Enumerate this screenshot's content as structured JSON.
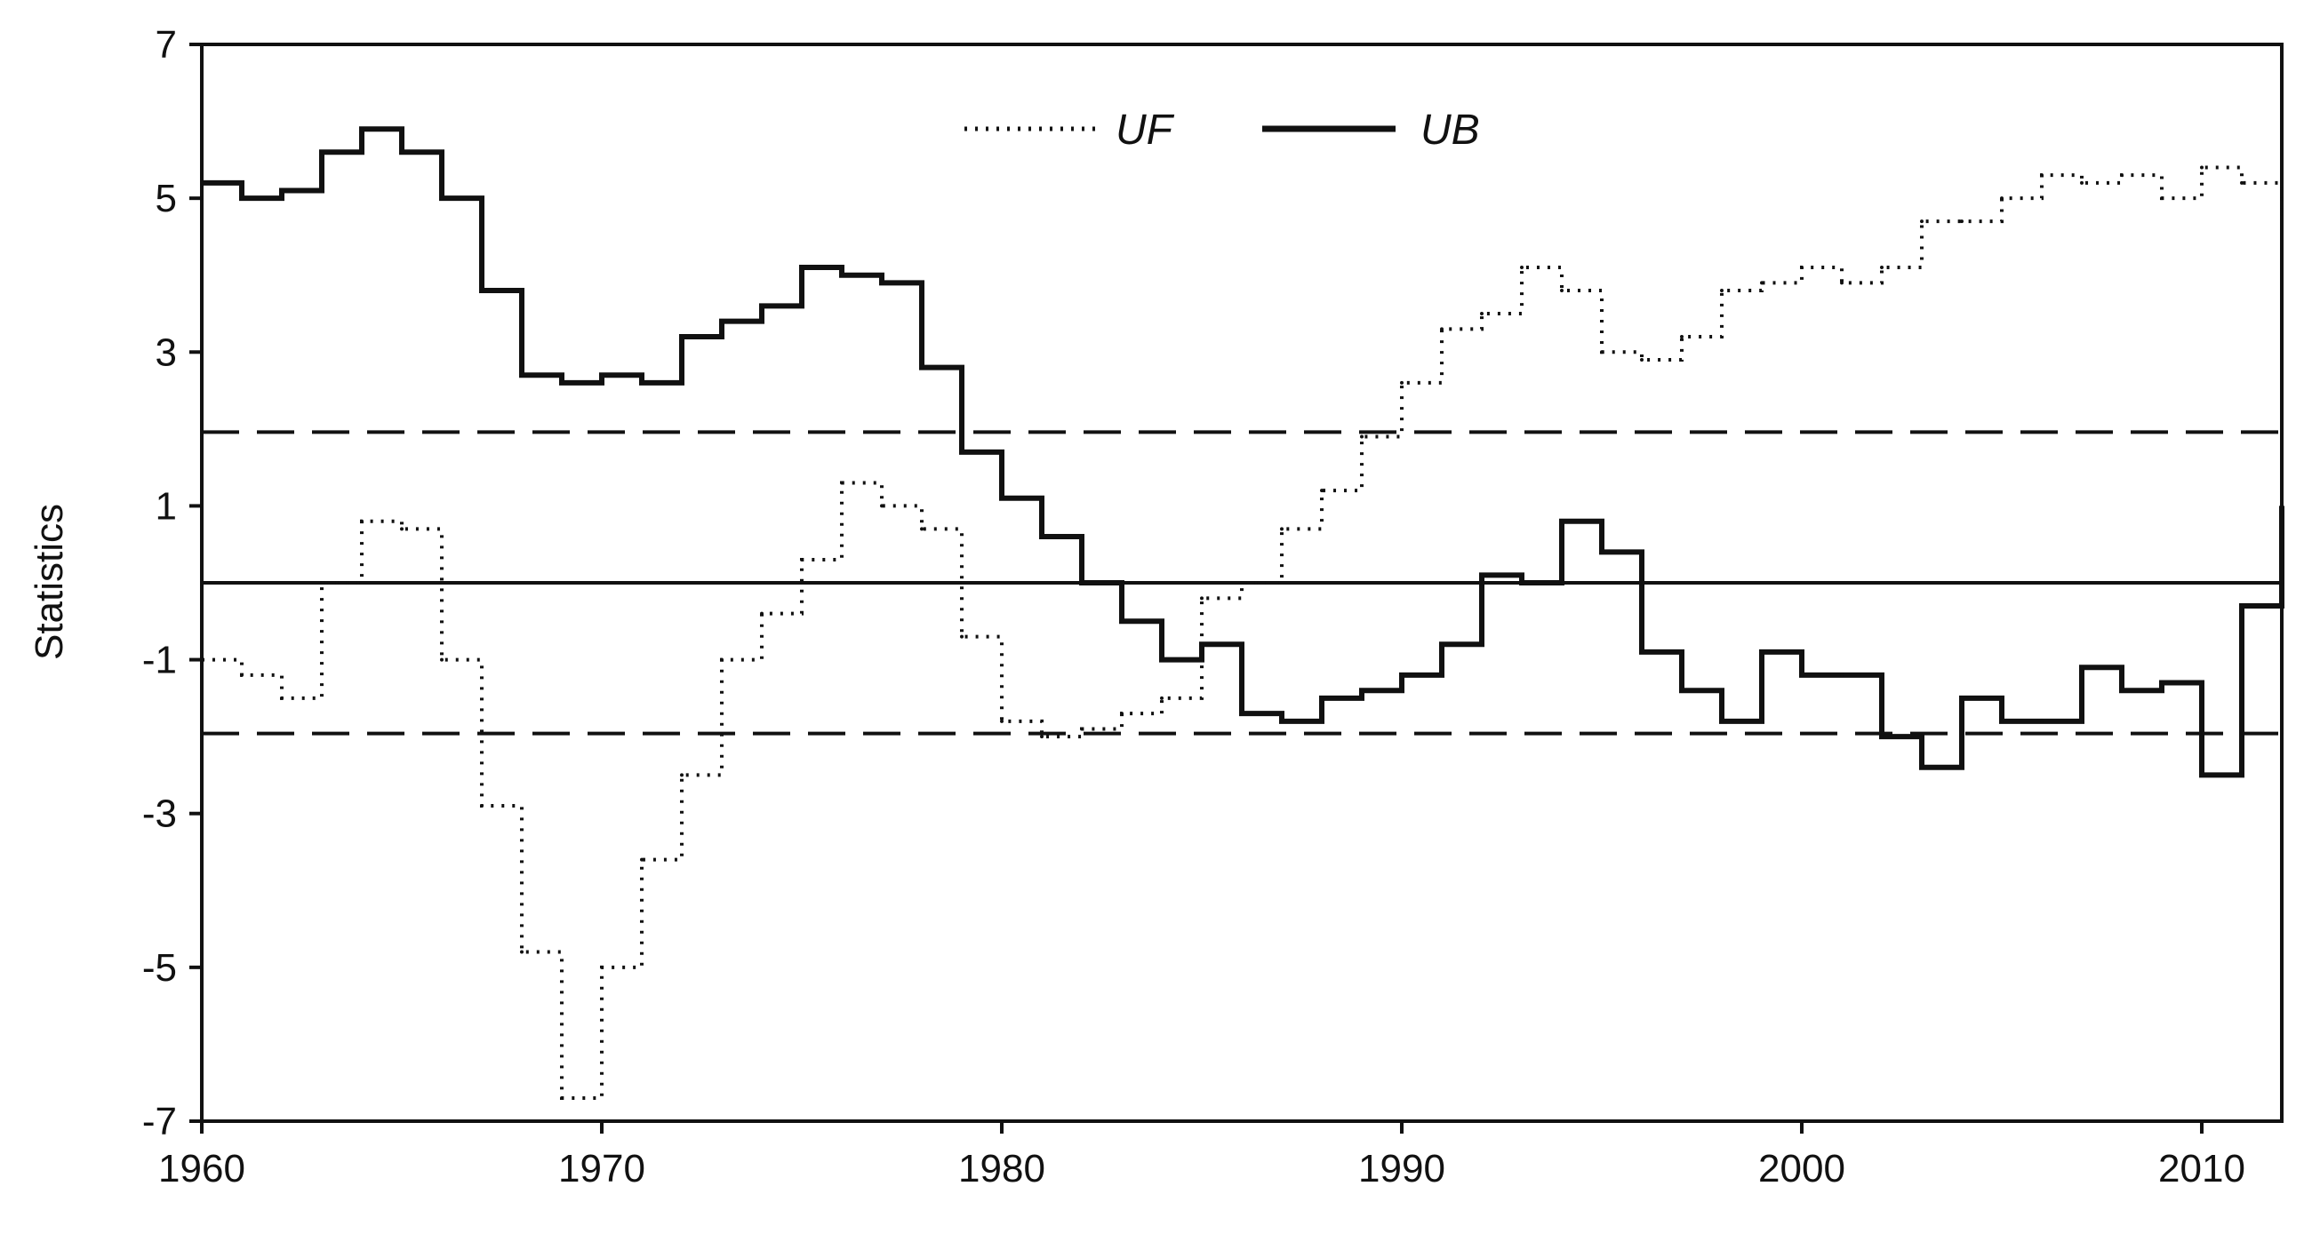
{
  "chart_data": {
    "type": "line",
    "title": "",
    "xlabel": "",
    "ylabel": "Statistics",
    "xlim": [
      1960,
      2012
    ],
    "ylim": [
      -7,
      7
    ],
    "x_ticks": [
      1960,
      1970,
      1980,
      1990,
      2000,
      2010
    ],
    "y_ticks": [
      7,
      5,
      3,
      1,
      -1,
      -3,
      -5,
      -7
    ],
    "grid": false,
    "legend_position": "top-center",
    "reference_lines": [
      {
        "y": 0,
        "style": "solid"
      },
      {
        "y": 1.96,
        "style": "dashed"
      },
      {
        "y": -1.96,
        "style": "dashed"
      }
    ],
    "series": [
      {
        "name": "UF",
        "style": "dotted",
        "x": [
          1960,
          1961,
          1962,
          1963,
          1964,
          1965,
          1966,
          1967,
          1968,
          1969,
          1970,
          1971,
          1972,
          1973,
          1974,
          1975,
          1976,
          1977,
          1978,
          1979,
          1980,
          1981,
          1982,
          1983,
          1984,
          1985,
          1986,
          1987,
          1988,
          1989,
          1990,
          1991,
          1992,
          1993,
          1994,
          1995,
          1996,
          1997,
          1998,
          1999,
          2000,
          2001,
          2002,
          2003,
          2004,
          2005,
          2006,
          2007,
          2008,
          2009,
          2010,
          2011,
          2012
        ],
        "values": [
          -1.0,
          -1.2,
          -1.5,
          0.0,
          0.8,
          0.7,
          -1.0,
          -2.9,
          -4.8,
          -6.7,
          -5.0,
          -3.6,
          -2.5,
          -1.0,
          -0.4,
          0.3,
          1.3,
          1.0,
          0.7,
          -0.7,
          -1.8,
          -2.0,
          -1.9,
          -1.7,
          -1.5,
          -0.2,
          0.0,
          0.7,
          1.2,
          1.9,
          2.6,
          3.3,
          3.5,
          4.1,
          3.8,
          3.0,
          2.9,
          3.2,
          3.8,
          3.9,
          4.1,
          3.9,
          4.1,
          4.7,
          4.7,
          5.0,
          5.3,
          5.2,
          5.3,
          5.0,
          5.4,
          5.2,
          4.8
        ]
      },
      {
        "name": "UB",
        "style": "solid",
        "x": [
          1960,
          1961,
          1962,
          1963,
          1964,
          1965,
          1966,
          1967,
          1968,
          1969,
          1970,
          1971,
          1972,
          1973,
          1974,
          1975,
          1976,
          1977,
          1978,
          1979,
          1980,
          1981,
          1982,
          1983,
          1984,
          1985,
          1986,
          1987,
          1988,
          1989,
          1990,
          1991,
          1992,
          1993,
          1994,
          1995,
          1996,
          1997,
          1998,
          1999,
          2000,
          2001,
          2002,
          2003,
          2004,
          2005,
          2006,
          2007,
          2008,
          2009,
          2010,
          2011,
          2012
        ],
        "values": [
          5.2,
          5.0,
          5.1,
          5.6,
          5.9,
          5.6,
          5.0,
          3.8,
          2.7,
          2.6,
          2.7,
          2.6,
          3.2,
          3.4,
          3.6,
          4.1,
          4.0,
          3.9,
          2.8,
          1.7,
          1.1,
          0.6,
          0.0,
          -0.5,
          -1.0,
          -0.8,
          -1.7,
          -1.8,
          -1.5,
          -1.4,
          -1.2,
          -0.8,
          0.1,
          0.0,
          0.8,
          0.4,
          -0.9,
          -1.4,
          -1.8,
          -0.9,
          -1.2,
          -1.2,
          -2.0,
          -2.4,
          -1.5,
          -1.8,
          -1.8,
          -1.1,
          -1.4,
          -1.3,
          -2.5,
          -0.3,
          1.0
        ]
      }
    ],
    "legend": [
      {
        "label": "UF",
        "style": "dotted"
      },
      {
        "label": "UB",
        "style": "solid"
      }
    ]
  }
}
